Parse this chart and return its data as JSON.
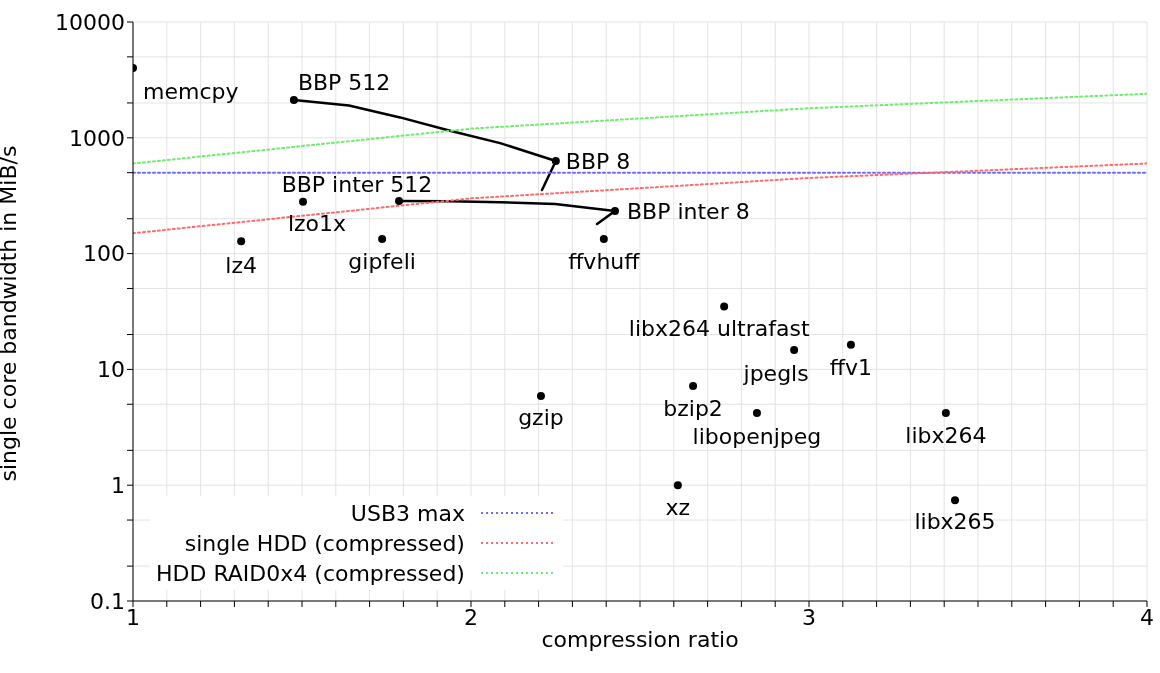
{
  "chart_data": {
    "type": "scatter",
    "xlabel": "compression ratio",
    "ylabel": "single core bandwidth in MiB/s",
    "log": "y",
    "grid": true,
    "legend": "bottom left",
    "marker": "circle",
    "xlim": [
      1,
      4
    ],
    "ylim": [
      0.1,
      10000
    ],
    "xticks": [
      1,
      {
        "value": 1.1,
        "label": null
      },
      {
        "value": 1.2,
        "label": null
      },
      {
        "value": 1.3,
        "label": null
      },
      {
        "value": 1.4,
        "label": null
      },
      {
        "value": 1.5,
        "label": null
      },
      {
        "value": 1.6,
        "label": null
      },
      {
        "value": 1.7,
        "label": null
      },
      {
        "value": 1.8,
        "label": null
      },
      {
        "value": 1.9,
        "label": null
      },
      2,
      {
        "value": 2.1,
        "label": null
      },
      {
        "value": 2.2,
        "label": null
      },
      {
        "value": 2.3,
        "label": null
      },
      {
        "value": 2.4,
        "label": null
      },
      {
        "value": 2.5,
        "label": null
      },
      {
        "value": 2.6,
        "label": null
      },
      {
        "value": 2.7,
        "label": null
      },
      {
        "value": 2.8,
        "label": null
      },
      {
        "value": 2.9,
        "label": null
      },
      3,
      {
        "value": 3.1,
        "label": null
      },
      {
        "value": 3.2,
        "label": null
      },
      {
        "value": 3.3,
        "label": null
      },
      {
        "value": 3.4,
        "label": null
      },
      {
        "value": 3.5,
        "label": null
      },
      {
        "value": 3.6,
        "label": null
      },
      {
        "value": 3.7,
        "label": null
      },
      {
        "value": 3.8,
        "label": null
      },
      {
        "value": 3.9,
        "label": null
      },
      4
    ],
    "yticks": [
      0.1,
      {
        "value": 0.2,
        "label": null
      },
      {
        "value": 0.5,
        "label": null
      },
      1,
      {
        "value": 2,
        "label": null
      },
      {
        "value": 5,
        "label": null
      },
      10,
      {
        "value": 20,
        "label": null
      },
      {
        "value": 50,
        "label": null
      },
      100,
      {
        "value": 200,
        "label": null
      },
      {
        "value": 500,
        "label": null
      },
      1000,
      {
        "value": 2000,
        "label": null
      },
      {
        "value": 5000,
        "label": null
      },
      10000
    ],
    "series": [
      {
        "color": "#000000",
        "x": [
          1.0,
          1.476,
          2.251,
          1.787,
          2.426,
          1.503,
          1.32,
          1.737,
          2.393,
          2.749,
          2.956,
          3.124,
          2.657,
          2.207,
          2.846,
          3.405,
          2.612,
          3.432
        ],
        "values": [
          4000,
          2120,
          630,
          284,
          233,
          280,
          128,
          134,
          134,
          35,
          14.7,
          16.3,
          7.2,
          5.9,
          4.2,
          4.2,
          1.0,
          0.74
        ]
      },
      {
        "type": "line",
        "color": "#000000",
        "marker": "none",
        "x": [
          1.476,
          1.639,
          1.79,
          1.938,
          2.086,
          2.251,
          2.21
        ],
        "values": [
          2120,
          1900,
          1500,
          1150,
          900,
          630,
          354
        ]
      },
      {
        "type": "line",
        "color": "#000000",
        "marker": "none",
        "x": [
          1.787,
          1.938,
          2.086,
          2.249,
          2.426,
          2.373
        ],
        "values": [
          284,
          283,
          278,
          268,
          233,
          180
        ]
      },
      {
        "type": "line",
        "name": "USB3 max",
        "color": "#6b6bff",
        "marker": "none",
        "line_style": "dotted",
        "x": [
          1,
          4
        ],
        "values": [
          500,
          500
        ]
      },
      {
        "type": "line",
        "name": "single HDD (compressed)",
        "color": "#ff6b6b",
        "marker": "none",
        "line_style": "dotted",
        "x": [
          1,
          2,
          3,
          4
        ],
        "values": [
          150,
          300,
          450,
          600
        ]
      },
      {
        "type": "line",
        "name": "HDD RAID0x4 (compressed)",
        "color": "#6bee6b",
        "marker": "none",
        "line_style": "dotted",
        "x": [
          1,
          2,
          3,
          4
        ],
        "values": [
          600,
          1200,
          1800,
          2400
        ]
      }
    ],
    "annotations": [
      {
        "text": "memcpy",
        "x": 1.0,
        "y": 4000
      },
      {
        "text": "BBP 512",
        "x": 1.476,
        "y": 2120
      },
      {
        "text": "BBP 8",
        "x": 2.251,
        "y": 630
      },
      {
        "text": "BBP inter 512",
        "x": 1.787,
        "y": 284
      },
      {
        "text": "BBP inter 8",
        "x": 2.426,
        "y": 233
      },
      {
        "text": "lzo1x",
        "x": 1.503,
        "y": 280
      },
      {
        "text": "lz4",
        "x": 1.32,
        "y": 128
      },
      {
        "text": "gipfeli",
        "x": 1.737,
        "y": 134
      },
      {
        "text": "ffvhuff",
        "x": 2.393,
        "y": 134
      },
      {
        "text": "libx264 ultrafast",
        "x": 2.749,
        "y": 35
      },
      {
        "text": "jpegls",
        "x": 2.956,
        "y": 14.7
      },
      {
        "text": "ffv1",
        "x": 3.124,
        "y": 16.3
      },
      {
        "text": "bzip2",
        "x": 2.657,
        "y": 7.2
      },
      {
        "text": "gzip",
        "x": 2.207,
        "y": 5.9
      },
      {
        "text": "libopenjpeg",
        "x": 2.846,
        "y": 4.2
      },
      {
        "text": "libx264",
        "x": 3.405,
        "y": 4.2
      },
      {
        "text": "xz",
        "x": 2.612,
        "y": 1.0
      },
      {
        "text": "libx265",
        "x": 3.432,
        "y": 0.74
      }
    ]
  }
}
